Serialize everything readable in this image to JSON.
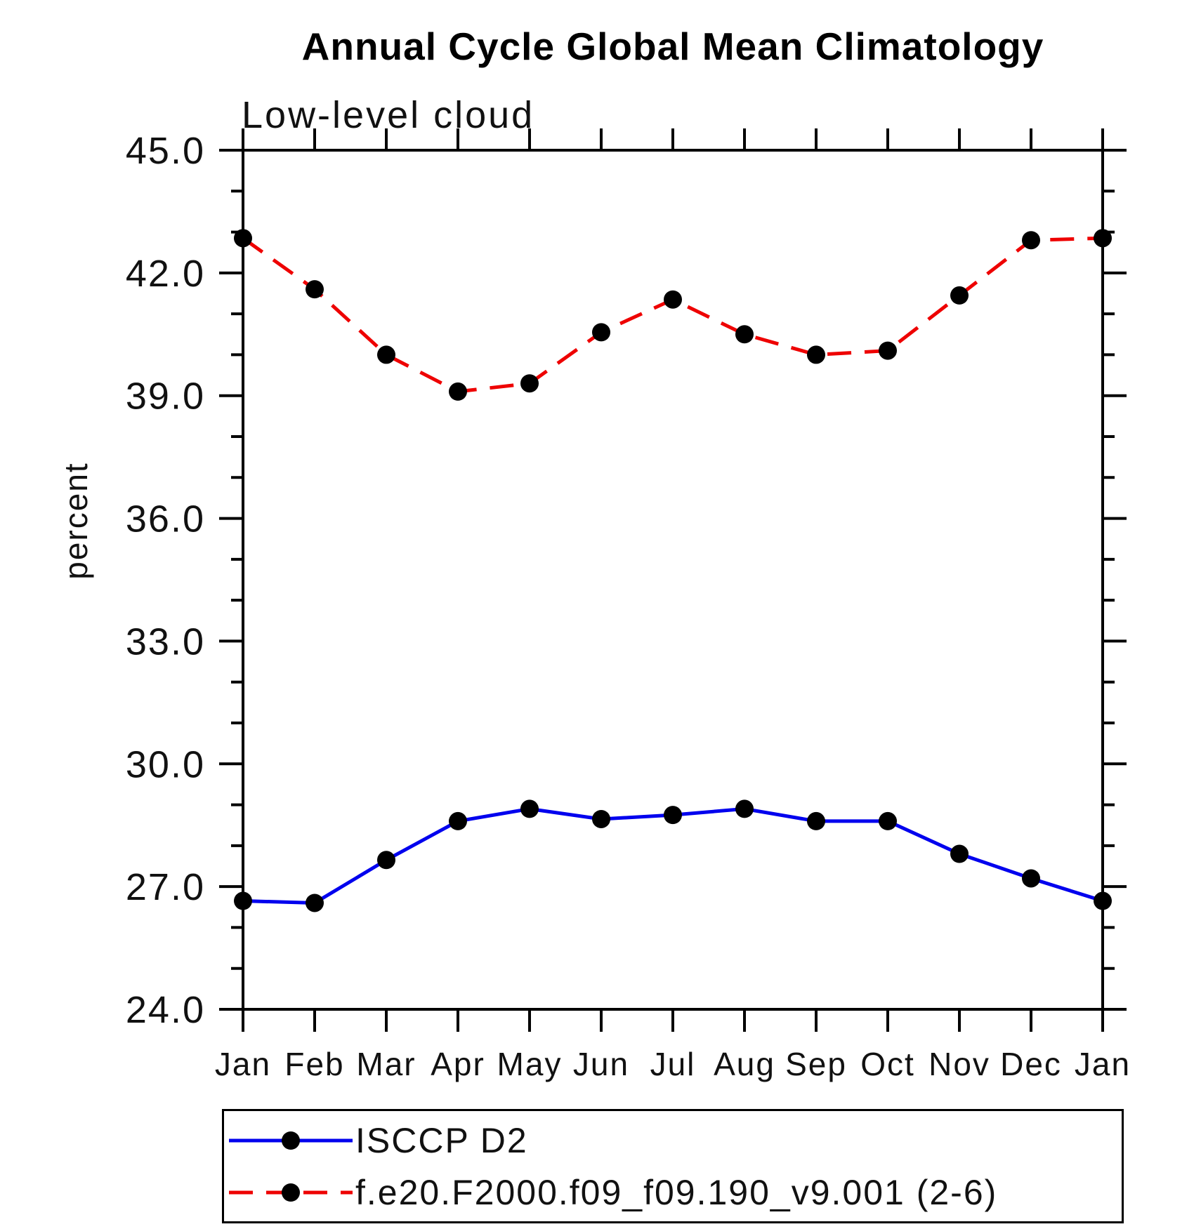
{
  "chart_data": {
    "type": "line",
    "title": "Annual Cycle Global Mean Climatology",
    "subtitle": "Low-level cloud",
    "ylabel": "percent",
    "xlabel": "",
    "categories": [
      "Jan",
      "Feb",
      "Mar",
      "Apr",
      "May",
      "Jun",
      "Jul",
      "Aug",
      "Sep",
      "Oct",
      "Nov",
      "Dec",
      "Jan"
    ],
    "ylim": [
      24.0,
      45.0
    ],
    "ytick_major": [
      24,
      27,
      30,
      33,
      36,
      39,
      42,
      45
    ],
    "ytick_major_labels": [
      "24.0",
      "27.0",
      "30.0",
      "33.0",
      "36.0",
      "39.0",
      "42.0",
      "45.0"
    ],
    "ytick_minor_step": 1,
    "grid": false,
    "frame": true,
    "legend": {
      "position": "bottom-left",
      "boxed": true
    },
    "series": [
      {
        "name": "ISCCP D2",
        "line_color": "#0000ee",
        "line_style": "solid",
        "marker": "filled-circle",
        "marker_color": "#000000",
        "values": [
          26.65,
          26.6,
          27.65,
          28.6,
          28.9,
          28.65,
          28.75,
          28.9,
          28.6,
          28.6,
          27.8,
          27.2,
          26.65
        ]
      },
      {
        "name": "f.e20.F2000.f09_f09.190_v9.001 (2-6)",
        "line_color": "#ee0000",
        "line_style": "dashed",
        "marker": "filled-circle",
        "marker_color": "#000000",
        "values": [
          42.85,
          41.6,
          40.0,
          39.1,
          39.3,
          40.55,
          41.35,
          40.5,
          40.0,
          40.1,
          41.45,
          42.8,
          42.85
        ]
      }
    ]
  }
}
